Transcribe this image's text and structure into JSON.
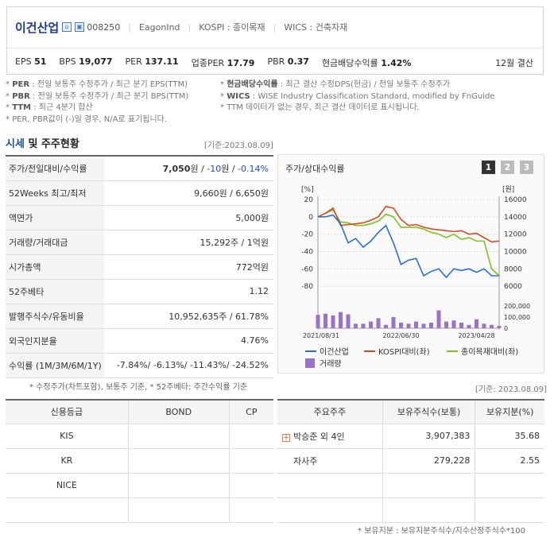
{
  "header": {
    "name": "이건산업",
    "code": "008250",
    "eng_name": "EagonInd",
    "market": "KOSPI : 종이목재",
    "wics": "WICS : 건축자재",
    "stats": [
      {
        "label": "EPS",
        "value": "51"
      },
      {
        "label": "BPS",
        "value": "19,077"
      },
      {
        "label": "PER",
        "value": "137.11"
      },
      {
        "label": "업종PER",
        "value": "17.79"
      },
      {
        "label": "PBR",
        "value": "0.37"
      },
      {
        "label": "현금배당수익률",
        "value": "1.42%"
      }
    ],
    "settle": "12월 결산"
  },
  "notes_left": [
    {
      "key": "PER",
      "text": ": 전일 보통주 수정주가 / 최근 분기 EPS(TTM)"
    },
    {
      "key": "PBR",
      "text": ": 전일 보통주 수정주가 / 최근 분기 BPS(TTM)"
    },
    {
      "key": "TTM",
      "text": ": 최근 4분기 합산"
    },
    {
      "key": "",
      "text": "PER, PBR값이 (-)일 경우, N/A로 표기됩니다."
    }
  ],
  "notes_right": [
    {
      "key": "현금배당수익률",
      "text": ": 최근 결산 수정DPS(현금) / 전일 보통주 수정주가"
    },
    {
      "key": "WICS",
      "text": ": WISE Industry Classification Standard, modified by FnGuide"
    },
    {
      "key": "",
      "text": "TTM 데이터가 없는 경우, 최근 결산 데이터로 표시됩니다."
    }
  ],
  "section": {
    "title_a": "시세",
    "title_b": " 및 주주현황",
    "basedate": "[기준:2023.08.09]"
  },
  "info_rows": [
    {
      "k": "주가/전일대비/수익률",
      "v": "7,050원 / -10원 / -0.14%"
    },
    {
      "k": "52Weeks 최고/최저",
      "v": "9,660원 / 6,650원"
    },
    {
      "k": "액면가",
      "v": "5,000원"
    },
    {
      "k": "거래량/거래대금",
      "v": "15,292주 / 1억원"
    },
    {
      "k": "시가총액",
      "v": "772억원"
    },
    {
      "k": "52주베타",
      "v": "1.12"
    },
    {
      "k": "발행주식수/유동비율",
      "v": "10,952,635주 / 61.78%"
    },
    {
      "k": "외국인지분율",
      "v": "4.76%"
    },
    {
      "k": "수익률 (1M/3M/6M/1Y)",
      "v": "-7.84%/ -6.13%/ -11.43%/ -24.52%"
    }
  ],
  "info_note": "* 수정주가(차트포함), 보통주 기준, * 52주베타: 주간수익률 기준",
  "chart": {
    "title": "주가/상대수익률",
    "buttons": [
      "1",
      "2",
      "3"
    ],
    "left_unit": "[%]",
    "right_unit": "[원]",
    "left_ticks": [
      "20",
      "0",
      "-20",
      "-40",
      "-60",
      "-80"
    ],
    "right_ticks": [
      "16000",
      "14000",
      "12000",
      "10000",
      "8000",
      "6000"
    ],
    "vol_ticks": [
      "200,000",
      "100,000",
      "0"
    ],
    "x_ticks": [
      "2021/08/31",
      "2022/06/30",
      "2023/04/28"
    ],
    "legend": [
      {
        "name": "이건산업",
        "color": "#2a6fd6"
      },
      {
        "name": "KOSPI대비(좌)",
        "color": "#d84a1c"
      },
      {
        "name": "종이목재대비(좌)",
        "color": "#7cc51c"
      },
      {
        "name": "거래량",
        "color": "#9a72c8"
      }
    ]
  },
  "chart_data": {
    "type": "line",
    "x": [
      "2021/08/31",
      "",
      "",
      "",
      "",
      "",
      "",
      "",
      "",
      "",
      "",
      "2022/06/30",
      "",
      "",
      "",
      "",
      "",
      "",
      "",
      "",
      "",
      "2023/04/28",
      "",
      "",
      ""
    ],
    "series": [
      {
        "name": "이건산업",
        "values": [
          0,
          0,
          2,
          -8,
          -30,
          -25,
          -35,
          -28,
          -18,
          -10,
          -30,
          -55,
          -50,
          -48,
          -68,
          -63,
          -60,
          -70,
          -60,
          -62,
          -60,
          -64,
          -60,
          -68,
          -68
        ]
      },
      {
        "name": "KOSPI대비(좌)",
        "values": [
          0,
          4,
          10,
          -10,
          -9,
          -8,
          -7,
          -4,
          0,
          12,
          10,
          -3,
          -10,
          -9,
          -12,
          -14,
          -15,
          -16,
          -17,
          -16,
          -20,
          -19,
          -24,
          -29,
          -28
        ]
      },
      {
        "name": "종이목재대비(좌)",
        "values": [
          0,
          4,
          8,
          -6,
          -7,
          -10,
          -10,
          -8,
          -5,
          3,
          0,
          -12,
          -12,
          -12,
          -14,
          -18,
          -20,
          -24,
          -20,
          -26,
          -24,
          -28,
          -28,
          -60,
          -68
        ]
      },
      {
        "name": "거래량",
        "values": [
          120000,
          130000,
          115000,
          145000,
          125000,
          40000,
          40000,
          60000,
          90000,
          30000,
          100000,
          50000,
          40000,
          60000,
          40000,
          50000,
          160000,
          60000,
          70000,
          50000,
          30000,
          80000,
          40000,
          30000,
          20000
        ]
      }
    ],
    "ylim_left": [
      -90,
      20
    ],
    "ylim_volume": [
      0,
      200000
    ]
  },
  "chart_basedate": "[기준: 2023.08.09]",
  "credit": {
    "headers": [
      "신용등급",
      "BOND",
      "CP"
    ],
    "rows": [
      [
        "KIS",
        "",
        ""
      ],
      [
        "KR",
        "",
        ""
      ],
      [
        "NICE",
        "",
        ""
      ],
      [
        "",
        "",
        ""
      ]
    ]
  },
  "holders": {
    "headers": [
      "주요주주",
      "보유주식수(보통)",
      "보유지분(%)"
    ],
    "rows": [
      [
        "박승준 외 4인",
        "3,907,383",
        "35.68"
      ],
      [
        "자사주",
        "279,228",
        "2.55"
      ],
      [
        "",
        "",
        ""
      ],
      [
        "",
        "",
        ""
      ]
    ],
    "note": "* 보유지분 : 보유지분주식수/지수산정주식수*100"
  }
}
